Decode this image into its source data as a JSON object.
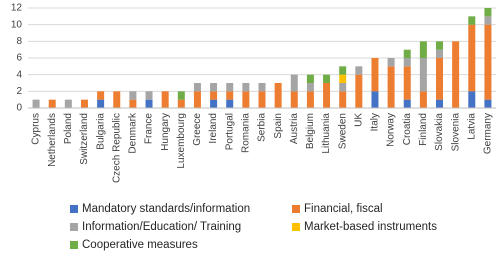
{
  "chart_data": {
    "type": "bar",
    "stacked": true,
    "categories": [
      "Cyprus",
      "Netherlands",
      "Poland",
      "Switzerland",
      "Bulgaria",
      "Czech Republic",
      "Denmark",
      "France",
      "Hungary",
      "Luxembourg",
      "Greece",
      "Ireland",
      "Portugal",
      "Romania",
      "Serbia",
      "Spain",
      "Austria",
      "Belgium",
      "Lithuania",
      "Sweden",
      "UK",
      "Italy",
      "Norway",
      "Croatia",
      "Finland",
      "Slovakia",
      "Slovenia",
      "Latvia",
      "Germany"
    ],
    "series": [
      {
        "name": "Mandatory standards/information",
        "color": "#4472c4",
        "values": [
          0,
          0,
          0,
          0,
          1,
          0,
          0,
          1,
          0,
          0,
          0,
          1,
          1,
          0,
          0,
          0,
          0,
          0,
          0,
          0,
          0,
          2,
          0,
          1,
          0,
          1,
          0,
          2,
          1
        ]
      },
      {
        "name": "Financial, fiscal",
        "color": "#ed7d31",
        "values": [
          0,
          1,
          0,
          1,
          1,
          2,
          1,
          0,
          2,
          1,
          2,
          1,
          1,
          2,
          2,
          3,
          2,
          2,
          3,
          2,
          4,
          4,
          5,
          4,
          2,
          5,
          8,
          8,
          9
        ]
      },
      {
        "name": "Information/Education/ Training",
        "color": "#a5a5a5",
        "values": [
          1,
          0,
          1,
          0,
          0,
          0,
          1,
          1,
          0,
          0,
          1,
          1,
          1,
          1,
          1,
          0,
          2,
          1,
          0,
          1,
          1,
          0,
          1,
          1,
          4,
          1,
          0,
          0,
          1
        ]
      },
      {
        "name": "Market-based instruments",
        "color": "#ffc000",
        "values": [
          0,
          0,
          0,
          0,
          0,
          0,
          0,
          0,
          0,
          0,
          0,
          0,
          0,
          0,
          0,
          0,
          0,
          0,
          0,
          1,
          0,
          0,
          0,
          0,
          0,
          0,
          0,
          0,
          0
        ]
      },
      {
        "name": "Cooperative measures",
        "color": "#70ad47",
        "values": [
          0,
          0,
          0,
          0,
          0,
          0,
          0,
          0,
          0,
          1,
          0,
          0,
          0,
          0,
          0,
          0,
          0,
          1,
          1,
          1,
          0,
          0,
          0,
          1,
          2,
          1,
          0,
          1,
          1
        ]
      }
    ],
    "ylim": [
      0,
      12
    ],
    "yticks": [
      0,
      2,
      4,
      6,
      8,
      10,
      12
    ],
    "grid": true
  }
}
